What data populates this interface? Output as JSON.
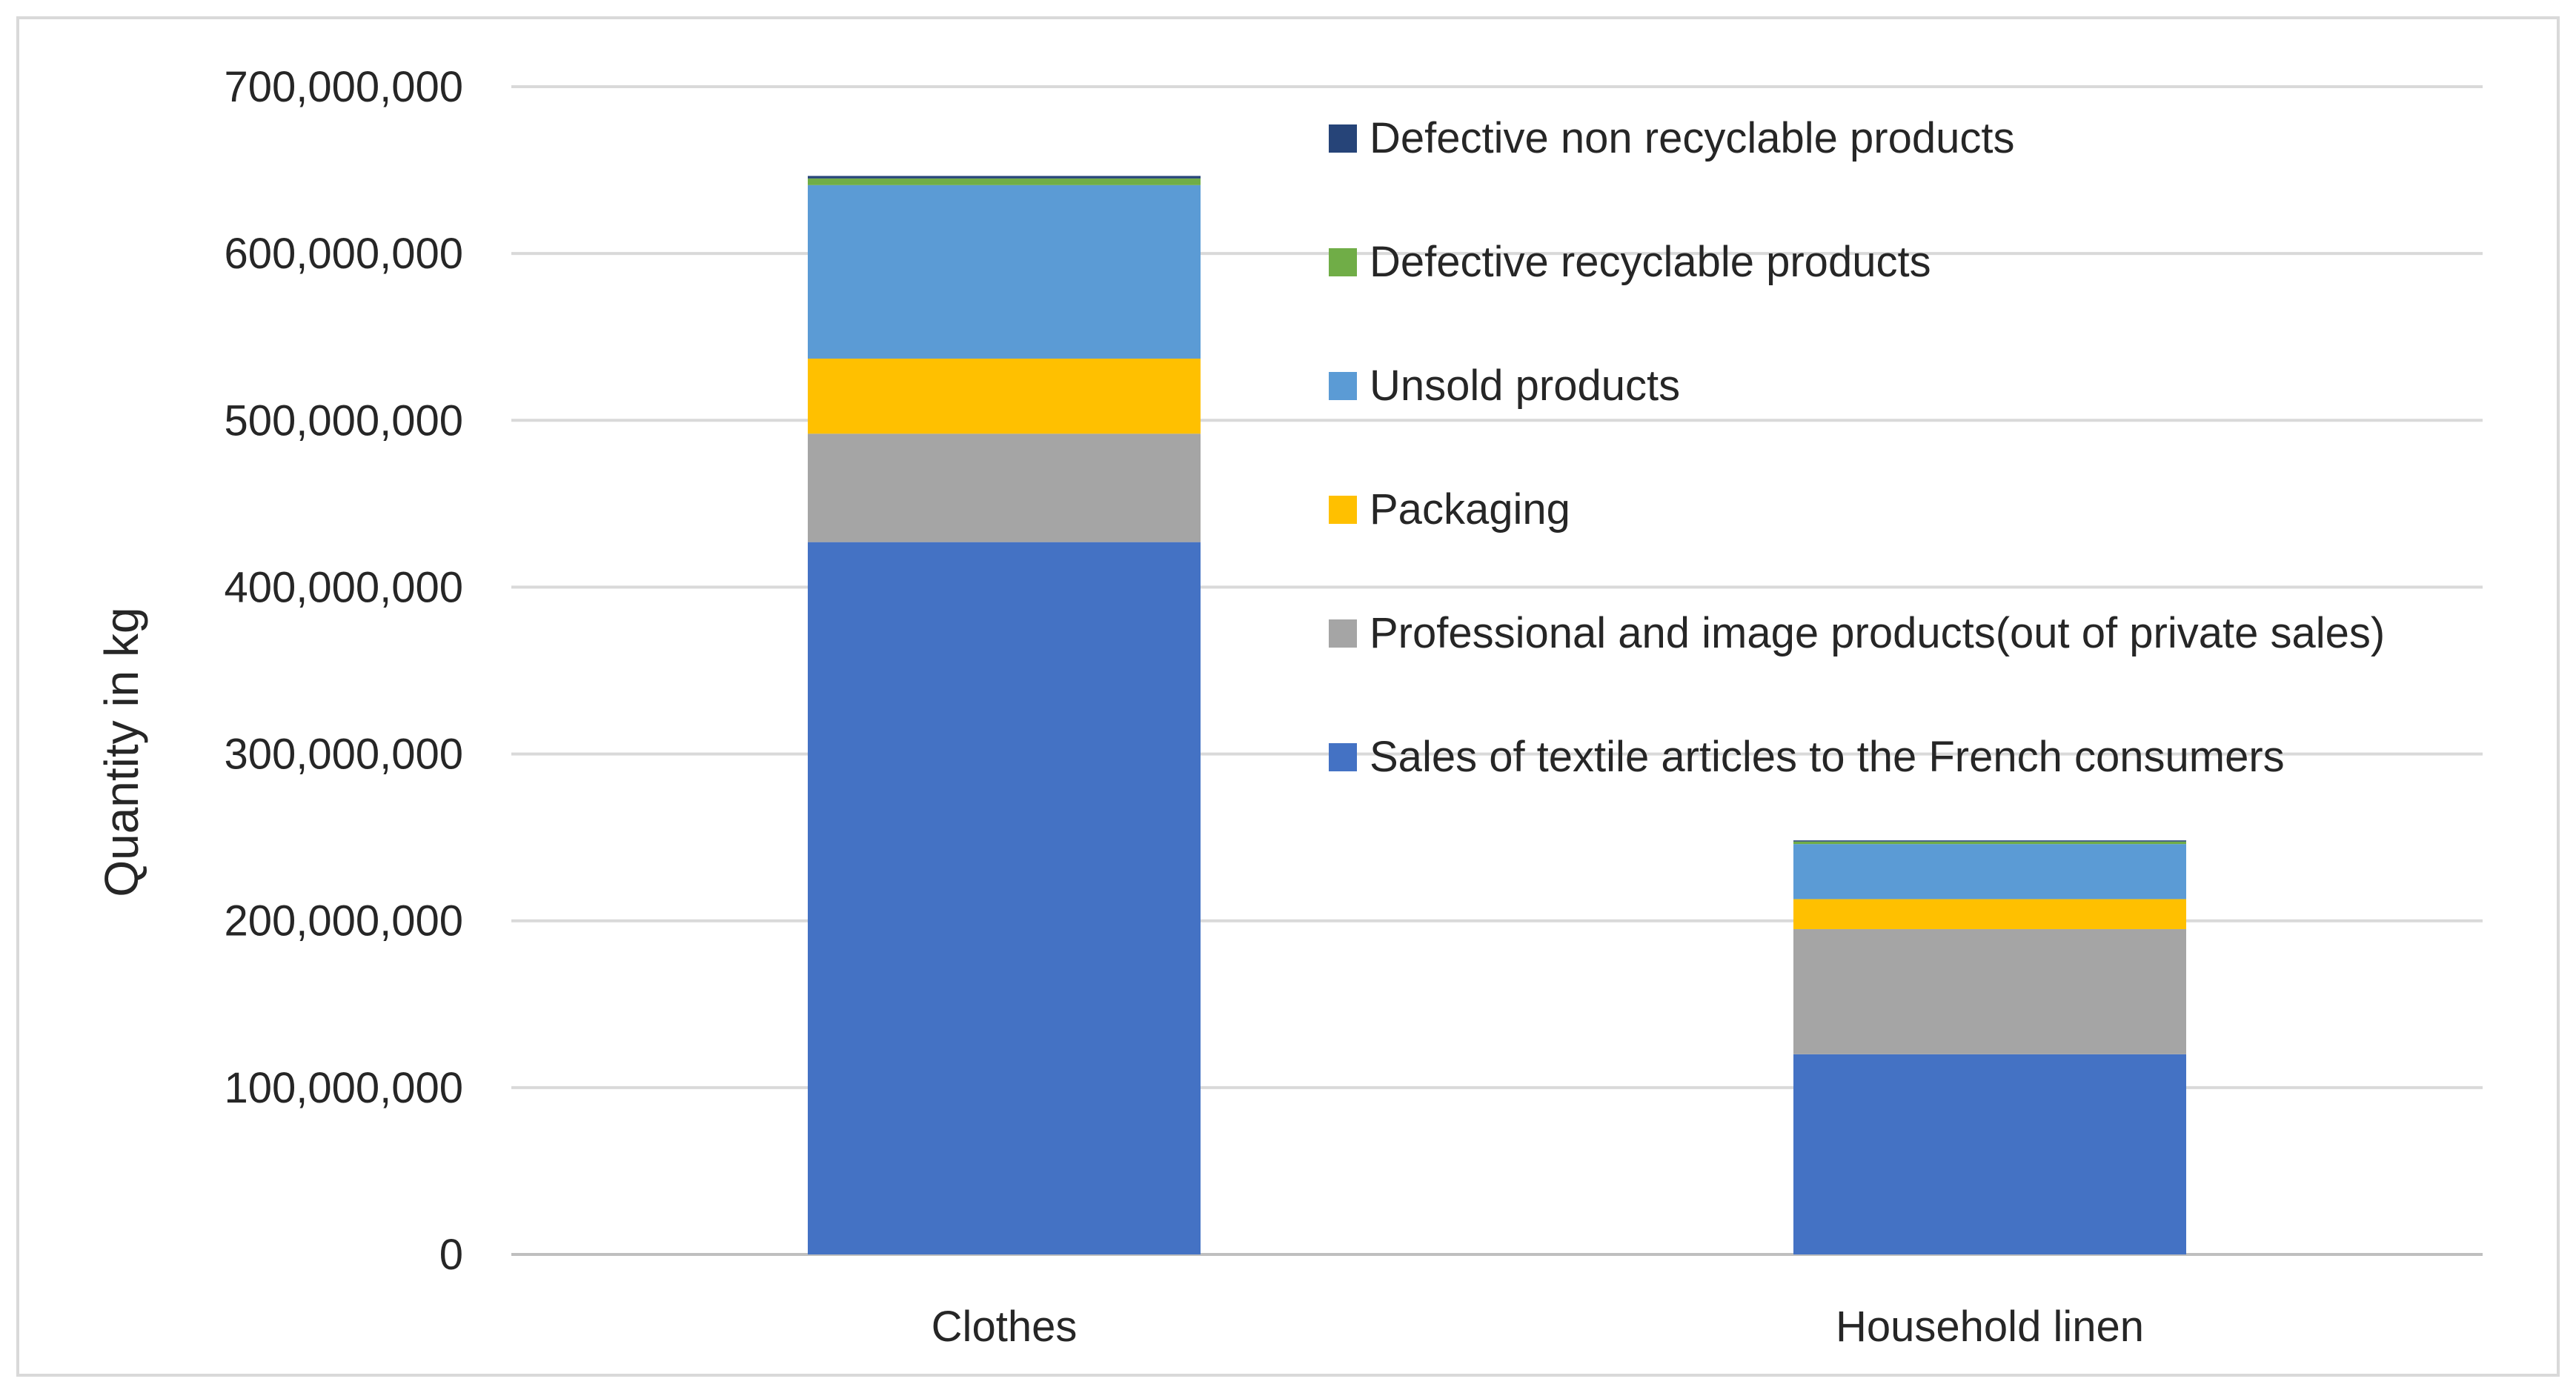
{
  "chart_data": {
    "type": "bar",
    "stacked": true,
    "title": "",
    "xlabel": "",
    "ylabel": "Quantity in kg",
    "ylim": [
      0,
      700000000
    ],
    "yticks": [
      0,
      100000000,
      200000000,
      300000000,
      400000000,
      500000000,
      600000000,
      700000000
    ],
    "ytick_labels": [
      "0",
      "100,000,000",
      "200,000,000",
      "300,000,000",
      "400,000,000",
      "500,000,000",
      "600,000,000",
      "700,000,000"
    ],
    "grid": true,
    "legend_position": "top-right",
    "categories": [
      "Clothes",
      "Household linen"
    ],
    "series": [
      {
        "name": "Sales of textile articles to the French consumers",
        "color": "#4472C4",
        "values": [
          427000000,
          120000000
        ]
      },
      {
        "name": "Professional and image products(out of private sales)",
        "color": "#A5A5A5",
        "values": [
          65000000,
          75000000
        ]
      },
      {
        "name": "Packaging",
        "color": "#FFC000",
        "values": [
          45000000,
          18000000
        ]
      },
      {
        "name": "Unsold products",
        "color": "#5B9BD5",
        "values": [
          104000000,
          33000000
        ]
      },
      {
        "name": "Defective recyclable products",
        "color": "#70AD47",
        "values": [
          4000000,
          1500000
        ]
      },
      {
        "name": "Defective non recyclable products",
        "color": "#264478",
        "values": [
          1500000,
          700000
        ]
      }
    ]
  }
}
